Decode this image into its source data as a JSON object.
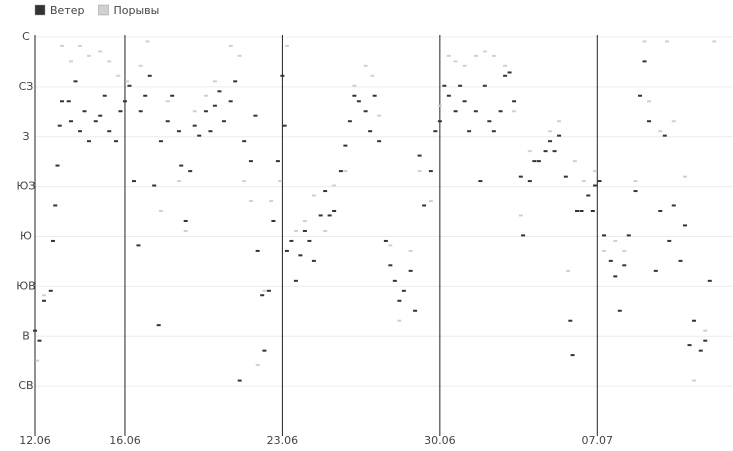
{
  "chart_data": {
    "type": "scatter",
    "legend": "top-left",
    "grid": true,
    "xlim": [
      0,
      30.5
    ],
    "xticks": [
      {
        "value": 0,
        "label": "12.06"
      },
      {
        "value": 4,
        "label": "16.06"
      },
      {
        "value": 11,
        "label": "23.06"
      },
      {
        "value": 18,
        "label": "30.06"
      },
      {
        "value": 25,
        "label": "07.07"
      }
    ],
    "ylim": [
      0,
      360
    ],
    "yticks": [
      {
        "value": 45,
        "label": "СВ"
      },
      {
        "value": 90,
        "label": "В"
      },
      {
        "value": 135,
        "label": "ЮВ"
      },
      {
        "value": 180,
        "label": "Ю"
      },
      {
        "value": 225,
        "label": "ЮЗ"
      },
      {
        "value": 270,
        "label": "З"
      },
      {
        "value": 315,
        "label": "СЗ"
      },
      {
        "value": 360,
        "label": "С"
      }
    ],
    "series": [
      {
        "name": "Ветер",
        "color": "#333333",
        "x": [
          0,
          0.2,
          0.4,
          0.7,
          0.8,
          0.9,
          1.0,
          1.1,
          1.2,
          1.5,
          1.6,
          1.8,
          2.0,
          2.2,
          2.4,
          2.7,
          2.9,
          3.1,
          3.3,
          3.6,
          3.8,
          4.0,
          4.2,
          4.4,
          4.6,
          4.7,
          4.9,
          5.1,
          5.3,
          5.5,
          5.6,
          5.9,
          6.1,
          6.4,
          6.5,
          6.7,
          6.9,
          7.1,
          7.3,
          7.6,
          7.8,
          8.0,
          8.2,
          8.4,
          8.7,
          8.9,
          9.1,
          9.3,
          9.6,
          9.8,
          9.9,
          10.1,
          10.2,
          10.4,
          10.6,
          10.8,
          11.0,
          11.1,
          11.2,
          11.4,
          11.6,
          11.8,
          12.0,
          12.2,
          12.4,
          12.7,
          12.9,
          13.1,
          13.3,
          13.6,
          13.8,
          14.0,
          14.2,
          14.4,
          14.7,
          14.9,
          15.1,
          15.3,
          15.6,
          15.8,
          16.0,
          16.2,
          16.4,
          16.7,
          16.9,
          17.1,
          17.3,
          17.6,
          17.8,
          18.0,
          18.2,
          18.4,
          18.7,
          18.9,
          19.1,
          19.3,
          19.6,
          19.8,
          20.0,
          20.2,
          20.4,
          20.7,
          20.9,
          21.1,
          21.3,
          21.6,
          21.7,
          22.0,
          22.2,
          22.4,
          22.7,
          22.9,
          23.1,
          23.3,
          23.6,
          23.8,
          23.9,
          24.1,
          24.3,
          24.6,
          24.8,
          24.9,
          25.1,
          25.3,
          25.6,
          25.8,
          26.0,
          26.2,
          26.4,
          26.7,
          26.9,
          27.1,
          27.3,
          27.6,
          27.8,
          28.0,
          28.2,
          28.4,
          28.7,
          28.9,
          29.1,
          29.3,
          29.6,
          29.8,
          30.0
        ],
        "values": [
          95,
          86,
          122,
          131,
          176,
          208,
          244,
          280,
          302,
          302,
          284,
          320,
          275,
          293,
          266,
          284,
          289,
          307,
          275,
          266,
          293,
          302,
          316,
          230,
          172,
          293,
          307,
          325,
          226,
          100,
          266,
          284,
          307,
          275,
          244,
          194,
          239,
          280,
          271,
          293,
          275,
          298,
          311,
          284,
          302,
          320,
          50,
          266,
          248,
          289,
          167,
          127,
          77,
          131,
          194,
          248,
          325,
          280,
          167,
          176,
          140,
          163,
          185,
          176,
          158,
          199,
          221,
          199,
          203,
          239,
          262,
          284,
          307,
          302,
          293,
          275,
          307,
          266,
          176,
          154,
          140,
          122,
          131,
          149,
          113,
          253,
          208,
          239,
          275,
          284,
          316,
          307,
          293,
          316,
          302,
          275,
          293,
          230,
          316,
          284,
          275,
          293,
          325,
          328,
          302,
          234,
          181,
          230,
          248,
          248,
          257,
          266,
          257,
          271,
          234,
          104,
          73,
          203,
          203,
          217,
          203,
          226,
          230,
          181,
          158,
          144,
          113,
          154,
          181,
          221,
          307,
          338,
          284,
          149,
          203,
          271,
          176,
          208,
          158,
          190,
          82,
          104,
          77,
          86,
          140
        ]
      },
      {
        "name": "Порывы",
        "color": "#d0d0d0",
        "x": [
          0.1,
          0.4,
          1.2,
          1.6,
          2.0,
          2.4,
          2.9,
          3.3,
          3.7,
          4.1,
          4.7,
          5.0,
          5.6,
          5.9,
          6.4,
          6.7,
          7.1,
          7.6,
          8.0,
          8.7,
          9.1,
          9.3,
          9.6,
          9.9,
          10.2,
          10.5,
          10.9,
          11.2,
          11.6,
          12.0,
          12.4,
          12.9,
          13.3,
          13.8,
          14.2,
          14.7,
          15.0,
          15.3,
          15.8,
          16.2,
          16.7,
          17.1,
          17.6,
          18.0,
          18.4,
          18.7,
          19.1,
          19.6,
          20.0,
          20.4,
          20.9,
          21.3,
          21.6,
          22.0,
          22.4,
          22.9,
          23.3,
          23.7,
          24.0,
          24.4,
          24.9,
          25.3,
          25.8,
          26.2,
          26.7,
          27.1,
          27.3,
          27.8,
          28.1,
          28.4,
          28.9,
          29.3,
          29.8,
          30.2
        ],
        "values": [
          68,
          127,
          352,
          338,
          352,
          343,
          347,
          338,
          325,
          320,
          334,
          356,
          203,
          302,
          230,
          185,
          293,
          307,
          320,
          352,
          343,
          230,
          212,
          64,
          131,
          212,
          230,
          352,
          185,
          194,
          217,
          185,
          226,
          239,
          316,
          334,
          325,
          289,
          172,
          104,
          167,
          239,
          212,
          298,
          343,
          338,
          334,
          343,
          347,
          343,
          334,
          293,
          199,
          257,
          248,
          275,
          284,
          149,
          248,
          230,
          239,
          167,
          176,
          167,
          230,
          356,
          302,
          275,
          356,
          284,
          234,
          50,
          95,
          356
        ]
      }
    ]
  }
}
